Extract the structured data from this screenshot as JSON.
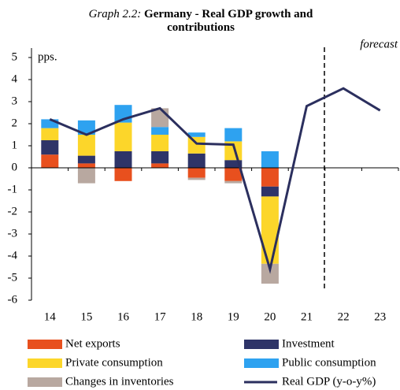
{
  "chart_data": {
    "type": "bar",
    "title_label": "Graph 2.2:",
    "title": "Germany - Real GDP growth and contributions",
    "y_label": "pps.",
    "annotation": "forecast",
    "categories": [
      "14",
      "15",
      "16",
      "17",
      "18",
      "19",
      "20",
      "21",
      "22",
      "23"
    ],
    "series": [
      {
        "name": "Net exports",
        "color": "#e8501e",
        "type": "bar",
        "values": [
          0.6,
          0.2,
          -0.6,
          0.2,
          -0.45,
          -0.6,
          -0.85,
          null,
          null,
          null
        ]
      },
      {
        "name": "Investment",
        "color": "#2e3468",
        "type": "bar",
        "values": [
          0.65,
          0.35,
          0.75,
          0.55,
          0.65,
          0.35,
          -0.45,
          null,
          null,
          null
        ]
      },
      {
        "name": "Private consumption",
        "color": "#fcd62a",
        "type": "bar",
        "values": [
          0.55,
          0.95,
          1.3,
          0.75,
          0.75,
          0.85,
          -3.05,
          null,
          null,
          null
        ]
      },
      {
        "name": "Public consumption",
        "color": "#2ea2f0",
        "type": "bar",
        "values": [
          0.4,
          0.65,
          0.8,
          0.35,
          0.2,
          0.6,
          0.75,
          null,
          null,
          null
        ]
      },
      {
        "name": "Changes in inventories",
        "color": "#b8a8a0",
        "type": "bar",
        "values": [
          0,
          -0.7,
          0,
          0.85,
          -0.1,
          -0.1,
          -0.9,
          null,
          null,
          null
        ]
      },
      {
        "name": "Real GDP (y-o-y%)",
        "color": "#2b2f5e",
        "type": "line",
        "values": [
          2.2,
          1.5,
          2.2,
          2.7,
          1.1,
          1.05,
          -4.6,
          2.8,
          3.6,
          2.6
        ]
      }
    ],
    "ylim": [
      -6,
      5
    ],
    "yticks": [
      -6,
      -5,
      -4,
      -3,
      -2,
      -1,
      0,
      1,
      2,
      3,
      4,
      5
    ],
    "grid": false
  }
}
